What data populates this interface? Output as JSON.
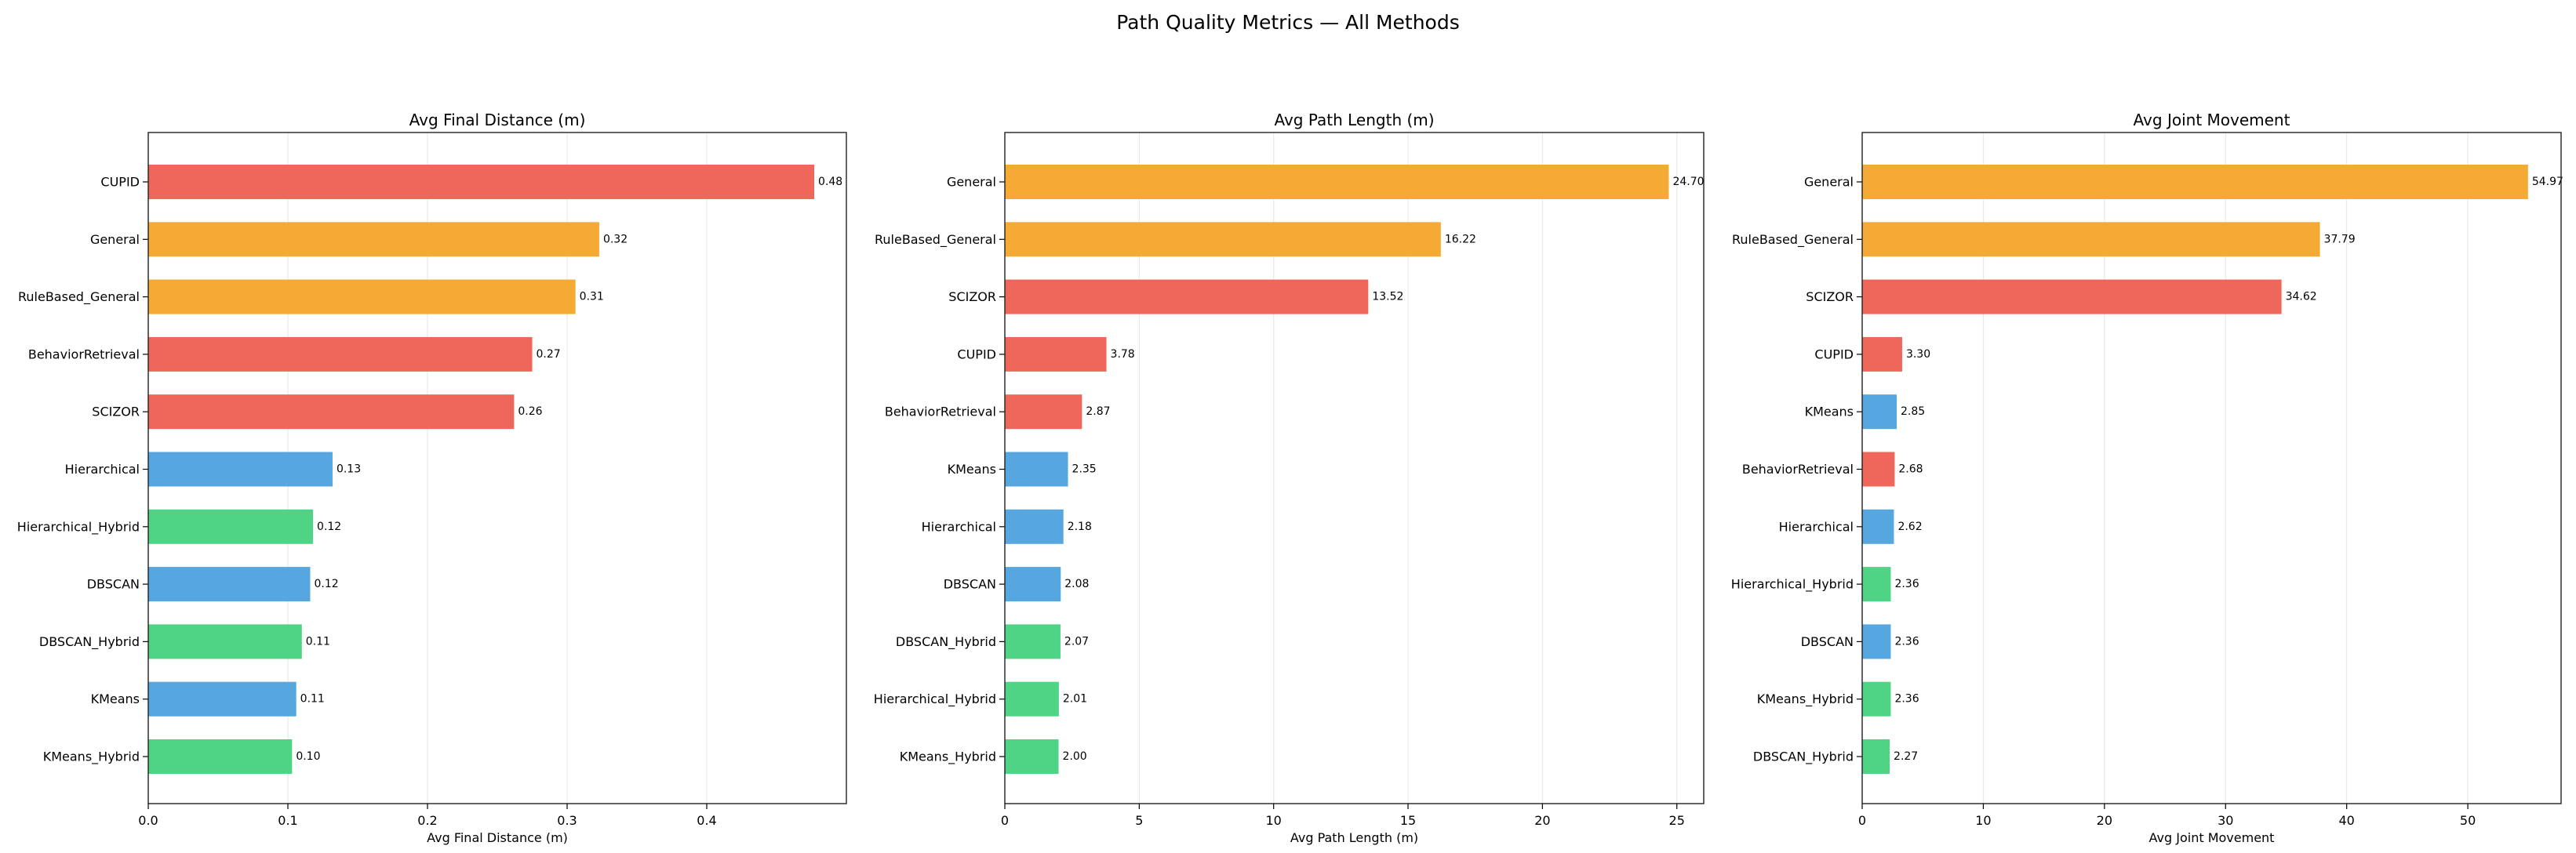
{
  "figure_title": "Path Quality Metrics — All Methods",
  "colors": {
    "red": "#ee675a",
    "orange": "#f4aa35",
    "blue": "#56a6df",
    "green": "#4fd385"
  },
  "chart_data": [
    {
      "type": "bar",
      "orientation": "horizontal",
      "title": "Avg Final Distance (m)",
      "xlabel": "Avg Final Distance (m)",
      "ylabel": "",
      "xlim": [
        0,
        0.5
      ],
      "xticks": [
        0.0,
        0.1,
        0.2,
        0.3,
        0.4
      ],
      "xtick_labels": [
        "0.0",
        "0.1",
        "0.2",
        "0.3",
        "0.4"
      ],
      "grid": "vertical",
      "categories": [
        "CUPID",
        "General",
        "RuleBased_General",
        "BehaviorRetrieval",
        "SCIZOR",
        "Hierarchical",
        "Hierarchical_Hybrid",
        "DBSCAN",
        "DBSCAN_Hybrid",
        "KMeans",
        "KMeans_Hybrid"
      ],
      "values": [
        0.477,
        0.323,
        0.306,
        0.275,
        0.262,
        0.132,
        0.118,
        0.116,
        0.11,
        0.106,
        0.103
      ],
      "value_labels": [
        "0.48",
        "0.32",
        "0.31",
        "0.27",
        "0.26",
        "0.13",
        "0.12",
        "0.12",
        "0.11",
        "0.11",
        "0.10"
      ],
      "colors": [
        "red",
        "orange",
        "orange",
        "red",
        "red",
        "blue",
        "green",
        "blue",
        "green",
        "blue",
        "green"
      ]
    },
    {
      "type": "bar",
      "orientation": "horizontal",
      "title": "Avg Path Length (m)",
      "xlabel": "Avg Path Length (m)",
      "ylabel": "",
      "xlim": [
        0,
        26
      ],
      "xticks": [
        0,
        5,
        10,
        15,
        20,
        25
      ],
      "xtick_labels": [
        "0",
        "5",
        "10",
        "15",
        "20",
        "25"
      ],
      "grid": "vertical",
      "categories": [
        "General",
        "RuleBased_General",
        "SCIZOR",
        "CUPID",
        "BehaviorRetrieval",
        "KMeans",
        "Hierarchical",
        "DBSCAN",
        "DBSCAN_Hybrid",
        "Hierarchical_Hybrid",
        "KMeans_Hybrid"
      ],
      "values": [
        24.7,
        16.22,
        13.52,
        3.78,
        2.87,
        2.35,
        2.18,
        2.08,
        2.07,
        2.01,
        2.0
      ],
      "value_labels": [
        "24.70",
        "16.22",
        "13.52",
        "3.78",
        "2.87",
        "2.35",
        "2.18",
        "2.08",
        "2.07",
        "2.01",
        "2.00"
      ],
      "colors": [
        "orange",
        "orange",
        "red",
        "red",
        "red",
        "blue",
        "blue",
        "blue",
        "green",
        "green",
        "green"
      ]
    },
    {
      "type": "bar",
      "orientation": "horizontal",
      "title": "Avg Joint Movement",
      "xlabel": "Avg Joint Movement",
      "ylabel": "",
      "xlim": [
        0,
        57.7
      ],
      "xticks": [
        0,
        10,
        20,
        30,
        40,
        50
      ],
      "xtick_labels": [
        "0",
        "10",
        "20",
        "30",
        "40",
        "50"
      ],
      "grid": "vertical",
      "categories": [
        "General",
        "RuleBased_General",
        "SCIZOR",
        "CUPID",
        "KMeans",
        "BehaviorRetrieval",
        "Hierarchical",
        "Hierarchical_Hybrid",
        "DBSCAN",
        "KMeans_Hybrid",
        "DBSCAN_Hybrid"
      ],
      "values": [
        54.97,
        37.79,
        34.62,
        3.3,
        2.85,
        2.68,
        2.62,
        2.36,
        2.36,
        2.36,
        2.27
      ],
      "value_labels": [
        "54.97",
        "37.79",
        "34.62",
        "3.30",
        "2.85",
        "2.68",
        "2.62",
        "2.36",
        "2.36",
        "2.36",
        "2.27"
      ],
      "colors": [
        "orange",
        "orange",
        "red",
        "red",
        "blue",
        "red",
        "blue",
        "green",
        "blue",
        "green",
        "green"
      ]
    }
  ]
}
